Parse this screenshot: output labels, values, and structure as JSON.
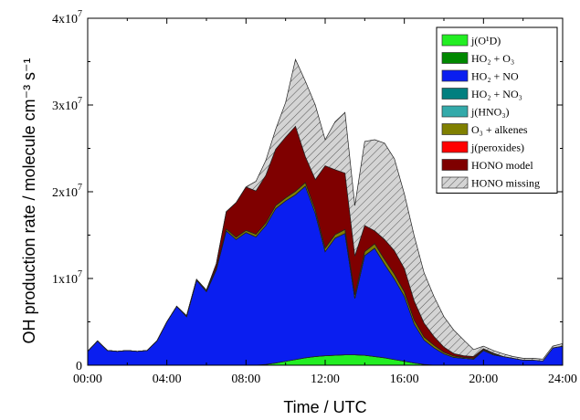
{
  "chart_data": {
    "type": "area",
    "stacked": true,
    "xlabel": "Time / UTC",
    "ylabel": "OH production rate / molecule cm⁻³ s⁻¹",
    "xlim": [
      0,
      24
    ],
    "ylim": [
      0,
      40000000
    ],
    "x_ticks": [
      {
        "value": 0,
        "label": "00:00"
      },
      {
        "value": 4,
        "label": "04:00"
      },
      {
        "value": 8,
        "label": "08:00"
      },
      {
        "value": 12,
        "label": "12:00"
      },
      {
        "value": 16,
        "label": "16:00"
      },
      {
        "value": 20,
        "label": "20:00"
      },
      {
        "value": 24,
        "label": "24:00"
      }
    ],
    "y_ticks": [
      {
        "value": 0,
        "label": "0"
      },
      {
        "value": 10000000,
        "label": "1x10",
        "exp": "7"
      },
      {
        "value": 20000000,
        "label": "2x10",
        "exp": "7"
      },
      {
        "value": 30000000,
        "label": "3x10",
        "exp": "7"
      },
      {
        "value": 40000000,
        "label": "4x10",
        "exp": "7"
      }
    ],
    "grid": false,
    "legend_position": "top-right",
    "x": [
      0,
      0.5,
      1,
      1.5,
      2,
      2.5,
      3,
      3.5,
      4,
      4.5,
      5,
      5.5,
      6,
      6.5,
      7,
      7.5,
      8,
      8.5,
      9,
      9.5,
      10,
      10.5,
      11,
      11.5,
      12,
      12.5,
      13,
      13.5,
      14,
      14.5,
      15,
      15.5,
      16,
      16.5,
      17,
      17.5,
      18,
      18.5,
      19,
      19.5,
      20,
      20.5,
      21,
      21.5,
      22,
      22.5,
      23,
      23.5,
      24
    ],
    "series": [
      {
        "name": "j(O¹D)",
        "color": "#22ee22",
        "values": [
          0,
          0,
          0,
          0,
          0,
          0,
          0,
          0,
          0,
          0,
          0,
          0,
          0,
          0,
          0,
          0,
          0,
          0,
          100000,
          250000,
          450000,
          650000,
          850000,
          1000000,
          1100000,
          1150000,
          1200000,
          1200000,
          1150000,
          1000000,
          850000,
          650000,
          450000,
          250000,
          100000,
          0,
          0,
          0,
          0,
          0,
          0,
          0,
          0,
          0,
          0,
          0,
          0,
          0,
          0
        ]
      },
      {
        "name": "HO₂ + O₃",
        "color": "#008800",
        "values": [
          0,
          0,
          0,
          0,
          0,
          0,
          0,
          0,
          0,
          0,
          0,
          0,
          0,
          0,
          0,
          0,
          0,
          0,
          0,
          0,
          0,
          0,
          0,
          0,
          0,
          0,
          0,
          0,
          0,
          0,
          0,
          0,
          0,
          0,
          0,
          0,
          0,
          0,
          0,
          0,
          0,
          0,
          0,
          0,
          0,
          0,
          0,
          0,
          0
        ]
      },
      {
        "name": "HO₂ + NO",
        "color": "#0a1ef0",
        "values": [
          1600000,
          2800000,
          1700000,
          1600000,
          1700000,
          1600000,
          1700000,
          2800000,
          5000000,
          6800000,
          5600000,
          9800000,
          8500000,
          11000000,
          15500000,
          14500000,
          15300000,
          14800000,
          16000000,
          17800000,
          18500000,
          19000000,
          19800000,
          16500000,
          12000000,
          13500000,
          14000000,
          6500000,
          11500000,
          12500000,
          10800000,
          9300000,
          7500000,
          4500000,
          2800000,
          2000000,
          1300000,
          900000,
          800000,
          700000,
          1700000,
          1200000,
          1000000,
          800000,
          600000,
          600000,
          500000,
          2000000,
          2200000
        ]
      },
      {
        "name": "HO₂ + NO₃",
        "color": "#007f7f",
        "values": [
          0,
          0,
          0,
          0,
          0,
          0,
          0,
          0,
          0,
          0,
          0,
          0,
          0,
          0,
          0,
          0,
          0,
          0,
          0,
          0,
          0,
          0,
          0,
          0,
          0,
          0,
          0,
          0,
          0,
          0,
          0,
          0,
          0,
          0,
          0,
          0,
          0,
          0,
          0,
          0,
          0,
          0,
          0,
          0,
          0,
          0,
          0,
          0,
          0
        ]
      },
      {
        "name": "j(HNO₃)",
        "color": "#33aaaa",
        "values": [
          0,
          0,
          0,
          0,
          0,
          0,
          0,
          0,
          0,
          0,
          0,
          0,
          0,
          0,
          0,
          0,
          0,
          0,
          0,
          0,
          0,
          0,
          0,
          0,
          0,
          0,
          0,
          0,
          0,
          0,
          0,
          0,
          0,
          0,
          0,
          0,
          0,
          0,
          0,
          0,
          0,
          0,
          0,
          0,
          0,
          0,
          0,
          0,
          0
        ]
      },
      {
        "name": "O₃ + alkenes",
        "color": "#808000",
        "values": [
          0,
          0,
          0,
          0,
          0,
          0,
          0,
          0,
          0,
          0,
          100000,
          100000,
          150000,
          200000,
          200000,
          250000,
          250000,
          300000,
          300000,
          350000,
          350000,
          400000,
          400000,
          400000,
          400000,
          400000,
          450000,
          400000,
          450000,
          500000,
          550000,
          550000,
          500000,
          450000,
          350000,
          300000,
          200000,
          150000,
          100000,
          100000,
          100000,
          100000,
          0,
          0,
          0,
          0,
          0,
          0,
          0
        ]
      },
      {
        "name": "j(peroxides)",
        "color": "#ff0000",
        "values": [
          0,
          0,
          0,
          0,
          0,
          0,
          0,
          0,
          0,
          0,
          0,
          0,
          0,
          0,
          0,
          0,
          0,
          0,
          0,
          0,
          0,
          0,
          0,
          0,
          0,
          0,
          0,
          0,
          0,
          0,
          0,
          0,
          0,
          0,
          0,
          0,
          0,
          0,
          0,
          0,
          0,
          0,
          0,
          0,
          0,
          0,
          0,
          0,
          0
        ]
      },
      {
        "name": "HONO model",
        "color": "#7f0000",
        "values": [
          0,
          0,
          0,
          0,
          0,
          0,
          0,
          0,
          0,
          0,
          0,
          0,
          0,
          500000,
          2000000,
          4000000,
          5000000,
          5000000,
          5500000,
          6500000,
          7000000,
          7500000,
          3000000,
          3500000,
          9500000,
          7500000,
          6500000,
          4500000,
          3000000,
          1500000,
          2300000,
          2700000,
          2700000,
          2200000,
          1600000,
          1000000,
          600000,
          300000,
          200000,
          200000,
          100000,
          100000,
          0,
          0,
          0,
          0,
          0,
          0,
          0
        ]
      },
      {
        "name": "HONO missing",
        "color": "#c8c8c8",
        "hatched": true,
        "values": [
          0,
          0,
          0,
          0,
          0,
          0,
          0,
          0,
          0,
          0,
          0,
          0,
          0,
          0,
          0,
          0,
          0,
          1100000,
          1700000,
          2300000,
          4000000,
          7700000,
          8700000,
          8600000,
          3000000,
          5500000,
          7000000,
          5800000,
          9700000,
          10500000,
          11100000,
          10600000,
          8600000,
          7500000,
          5800000,
          4600000,
          3500000,
          2700000,
          1800000,
          800000,
          300000,
          300000,
          300000,
          200000,
          200000,
          200000,
          200000,
          200000,
          300000
        ]
      }
    ]
  }
}
